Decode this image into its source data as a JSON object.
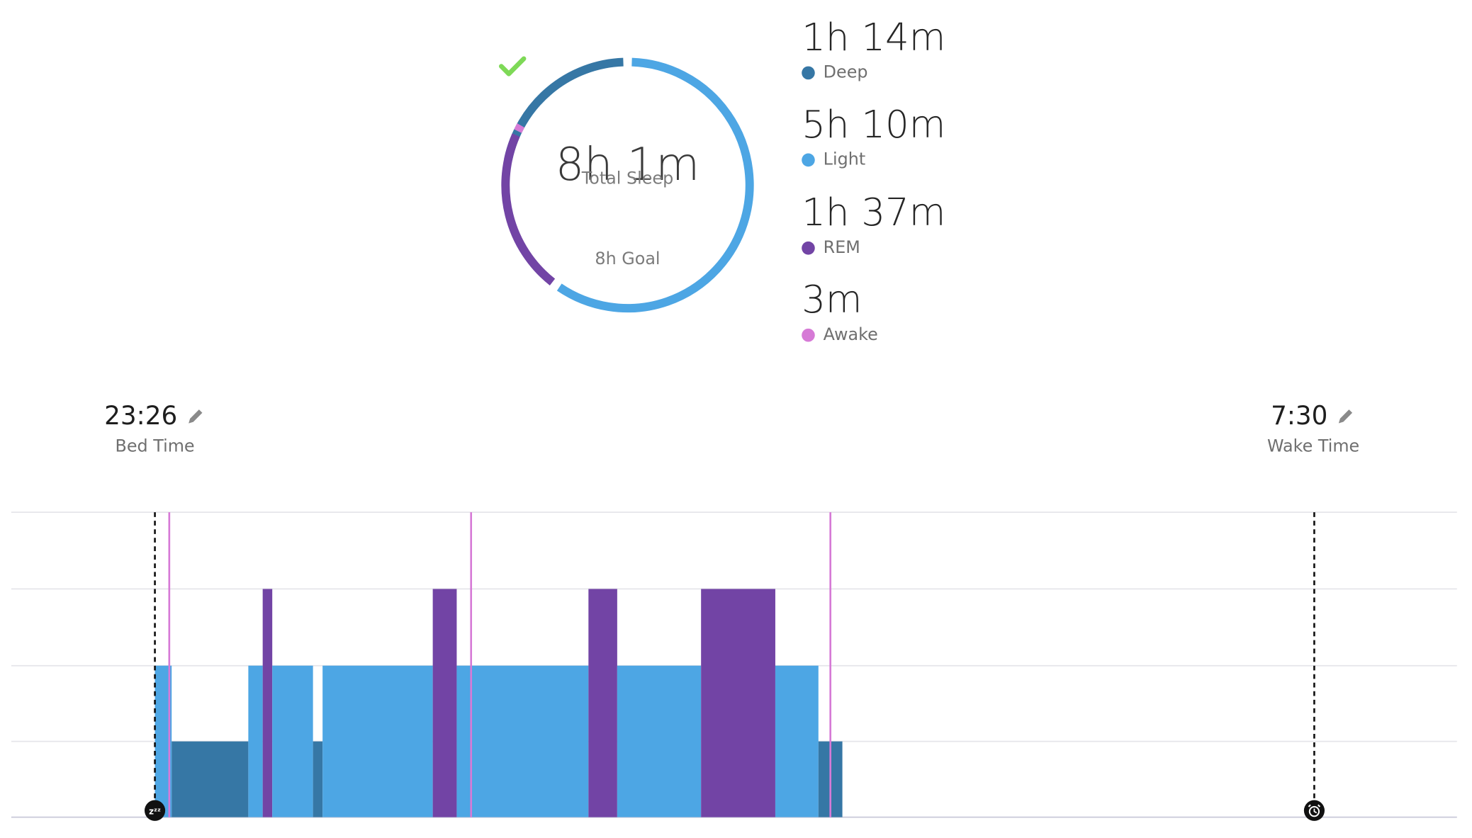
{
  "summary": {
    "total": "8h 1m",
    "total_label": "Total Sleep",
    "goal_label": "8h Goal"
  },
  "stages": [
    {
      "key": "deep",
      "value": "1h 14m",
      "label": "Deep",
      "color": "#3677a5"
    },
    {
      "key": "light",
      "value": "5h 10m",
      "label": "Light",
      "color": "#4da6e4"
    },
    {
      "key": "rem",
      "value": "1h 37m",
      "label": "REM",
      "color": "#7244a5"
    },
    {
      "key": "awake",
      "value": "3m",
      "label": "Awake",
      "color": "#d67ad6"
    }
  ],
  "colors": {
    "goal_check": "#7ed957",
    "gridline": "#e5e5ea",
    "marker": "#111111"
  },
  "bed_time": {
    "value": "23:26",
    "label": "Bed Time",
    "icon": "pencil-icon",
    "marker_icon": "sleep-zzz-icon"
  },
  "wake_time": {
    "value": "7:30",
    "label": "Wake Time",
    "icon": "pencil-icon",
    "marker_icon": "alarm-clock-icon"
  },
  "chart_data": {
    "type": "bar",
    "x_unit": "time",
    "start": "23:26",
    "end": "7:30",
    "levels": [
      "Deep",
      "Light",
      "REM",
      "Awake"
    ],
    "segments": [
      {
        "stage": "Light",
        "start": "23:26",
        "end": "23:33"
      },
      {
        "stage": "Deep",
        "start": "23:33",
        "end": "00:05"
      },
      {
        "stage": "Light",
        "start": "00:05",
        "end": "00:11"
      },
      {
        "stage": "REM",
        "start": "00:11",
        "end": "00:15"
      },
      {
        "stage": "Light",
        "start": "00:15",
        "end": "00:32"
      },
      {
        "stage": "Deep",
        "start": "00:32",
        "end": "00:36"
      },
      {
        "stage": "Light",
        "start": "00:36",
        "end": "01:22"
      },
      {
        "stage": "REM",
        "start": "01:22",
        "end": "01:32"
      },
      {
        "stage": "Light",
        "start": "01:32",
        "end": "02:27"
      },
      {
        "stage": "REM",
        "start": "02:27",
        "end": "02:39"
      },
      {
        "stage": "Light",
        "start": "02:39",
        "end": "03:14"
      },
      {
        "stage": "REM",
        "start": "03:14",
        "end": "03:45"
      },
      {
        "stage": "Light",
        "start": "03:45",
        "end": "04:03"
      },
      {
        "stage": "Deep",
        "start": "04:03",
        "end": "04:13"
      }
    ],
    "awake_markers": [
      "23:32",
      "01:38",
      "04:08"
    ]
  }
}
